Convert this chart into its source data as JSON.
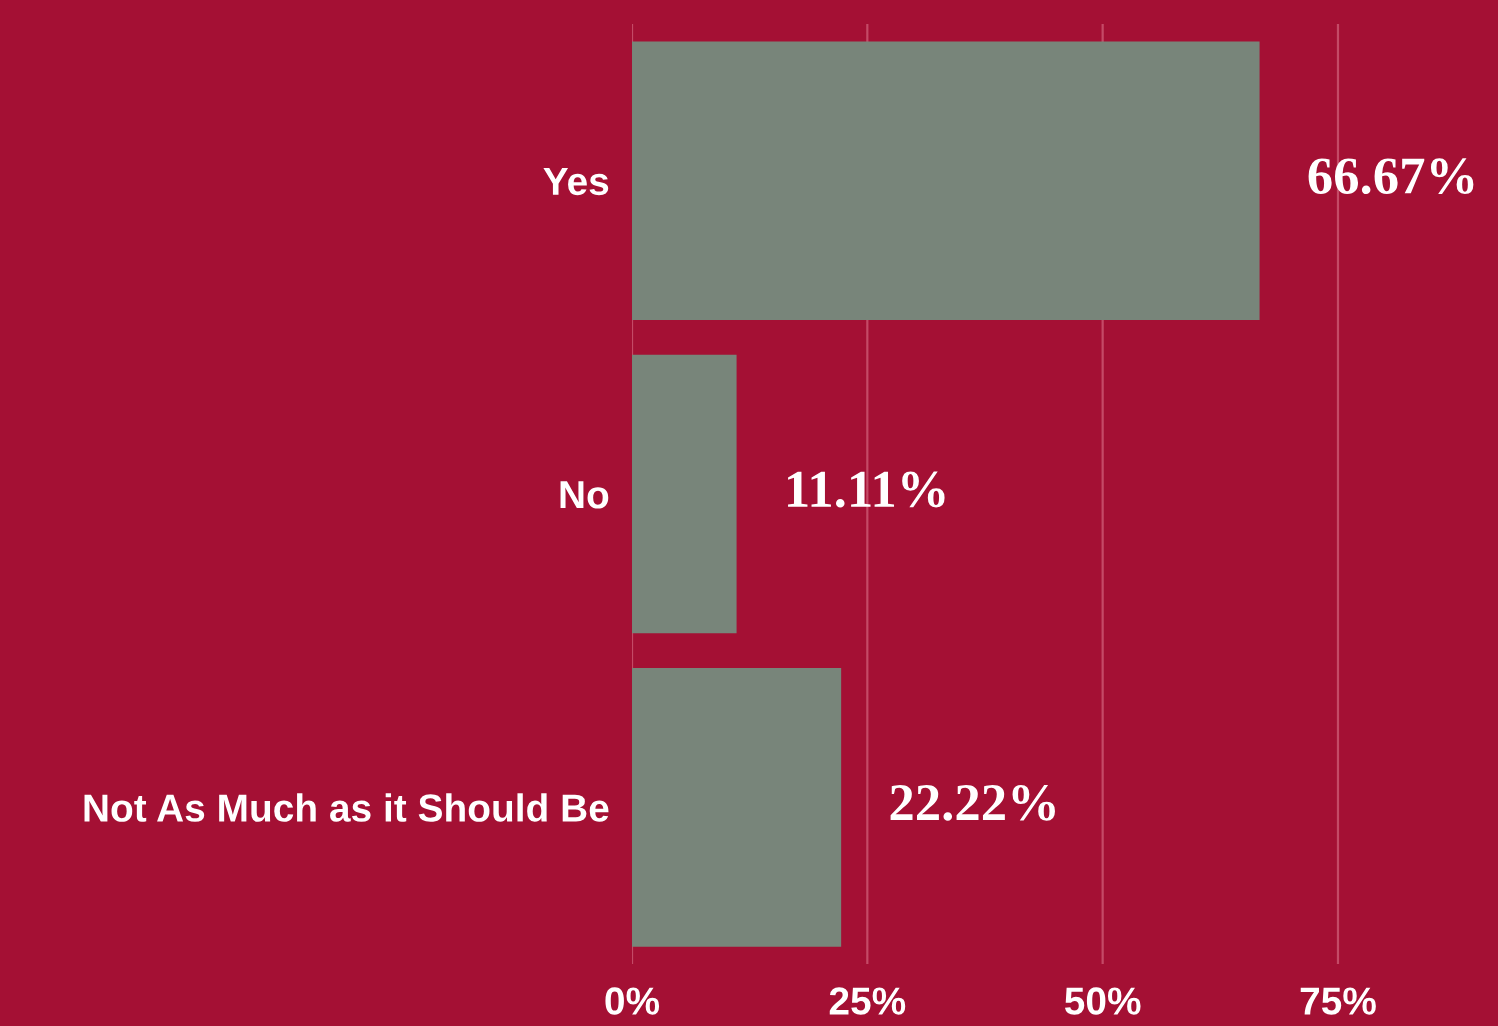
{
  "chart_data": {
    "type": "bar",
    "orientation": "horizontal",
    "categories": [
      "Yes",
      "No",
      "Not As Much as it Should Be"
    ],
    "values": [
      66.67,
      11.11,
      22.22
    ],
    "color": "#78857a",
    "value_labels": [
      "66.67%",
      "11.11%",
      "22.22%"
    ],
    "xlim": [
      0,
      92
    ],
    "xticks": [
      {
        "value": 0,
        "label": "0%"
      },
      {
        "value": 25,
        "label": "25%"
      },
      {
        "value": 50,
        "label": "50%"
      },
      {
        "value": 75,
        "label": "75%"
      }
    ],
    "grid": "x"
  }
}
